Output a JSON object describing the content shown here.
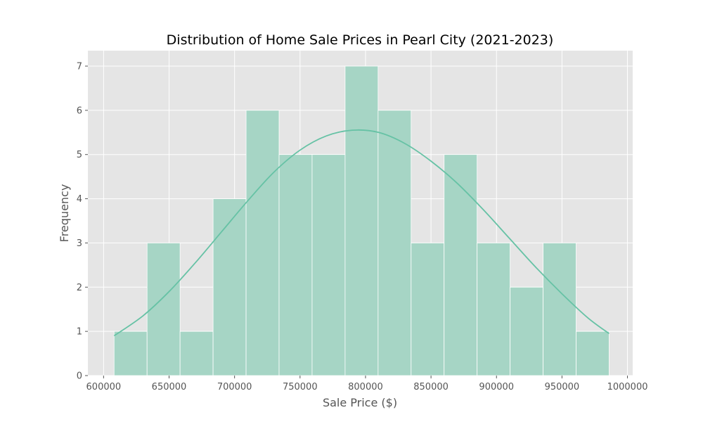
{
  "chart_data": {
    "type": "bar",
    "subtype": "histogram",
    "title": "Distribution of Home Sale Prices in Pearl City (2021-2023)",
    "xlabel": "Sale Price ($)",
    "ylabel": "Frequency",
    "xlim": [
      588000,
      1004000
    ],
    "ylim": [
      0,
      7.35
    ],
    "xticks": [
      600000,
      650000,
      700000,
      750000,
      800000,
      850000,
      900000,
      950000,
      1000000
    ],
    "yticks": [
      0,
      1,
      2,
      3,
      4,
      5,
      6,
      7
    ],
    "bins": [
      {
        "start": 608000,
        "end": 633200,
        "count": 1
      },
      {
        "start": 633200,
        "end": 658400,
        "count": 3
      },
      {
        "start": 658400,
        "end": 683600,
        "count": 1
      },
      {
        "start": 683600,
        "end": 708800,
        "count": 4
      },
      {
        "start": 708800,
        "end": 734000,
        "count": 6
      },
      {
        "start": 734000,
        "end": 759200,
        "count": 5
      },
      {
        "start": 759200,
        "end": 784400,
        "count": 5
      },
      {
        "start": 784400,
        "end": 809600,
        "count": 7
      },
      {
        "start": 809600,
        "end": 834800,
        "count": 6
      },
      {
        "start": 834800,
        "end": 860000,
        "count": 3
      },
      {
        "start": 860000,
        "end": 885200,
        "count": 5
      },
      {
        "start": 885200,
        "end": 910400,
        "count": 3
      },
      {
        "start": 910400,
        "end": 935600,
        "count": 2
      },
      {
        "start": 935600,
        "end": 960800,
        "count": 3
      },
      {
        "start": 960800,
        "end": 986000,
        "count": 1
      }
    ],
    "kde": {
      "x": [
        608000,
        630000,
        650000,
        670000,
        690000,
        710000,
        730000,
        750000,
        770000,
        790000,
        810000,
        830000,
        850000,
        870000,
        890000,
        910000,
        930000,
        950000,
        970000,
        986000
      ],
      "y": [
        0.9,
        1.35,
        1.9,
        2.55,
        3.25,
        3.95,
        4.6,
        5.1,
        5.42,
        5.55,
        5.5,
        5.25,
        4.85,
        4.35,
        3.75,
        3.1,
        2.45,
        1.85,
        1.3,
        0.95
      ]
    },
    "grid": true,
    "colors": {
      "bar_fill": "#a6d5c5",
      "bar_edge": "#ffffff",
      "kde_line": "#66c2a5",
      "plot_background": "#e5e5e5",
      "grid": "#ffffff"
    }
  }
}
